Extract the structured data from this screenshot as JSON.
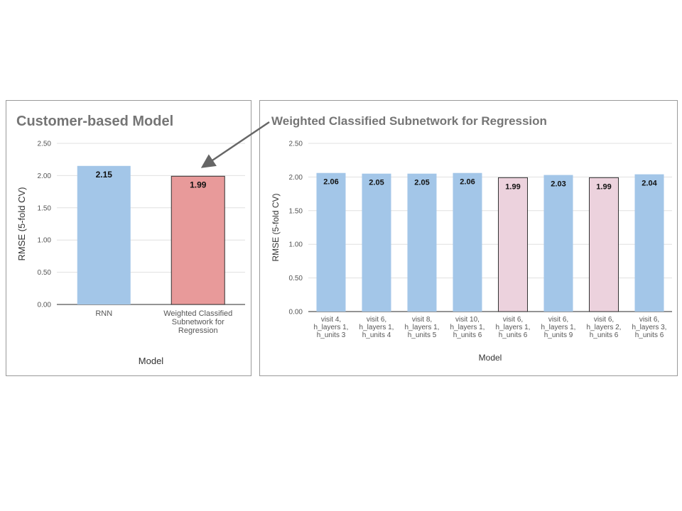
{
  "colors": {
    "bar_blue": "#a3c6e8",
    "bar_red": "#e89a9a",
    "bar_pink": "#ecd2dd",
    "grid": "#e0e0e0",
    "axis": "#555555",
    "arrow": "#666666"
  },
  "chart_data": [
    {
      "type": "bar",
      "title": "Customer-based Model",
      "xlabel": "Model",
      "ylabel": "RMSE (5-fold CV)",
      "ylim": [
        0,
        2.5
      ],
      "yticks": [
        "0.00",
        "0.50",
        "1.00",
        "1.50",
        "2.00",
        "2.50"
      ],
      "grid": true,
      "categories": [
        [
          "RNN"
        ],
        [
          "Weighted Classified",
          "Subnetwork for",
          "Regression"
        ]
      ],
      "values": [
        2.15,
        1.99
      ],
      "value_labels": [
        "2.15",
        "1.99"
      ],
      "bar_colors": [
        "#a3c6e8",
        "#e89a9a"
      ],
      "bar_outlined": [
        false,
        true
      ]
    },
    {
      "type": "bar",
      "title": "Weighted Classified Subnetwork for Regression",
      "xlabel": "Model",
      "ylabel": "RMSE (5-fold CV)",
      "ylim": [
        0,
        2.5
      ],
      "yticks": [
        "0.00",
        "0.50",
        "1.00",
        "1.50",
        "2.00",
        "2.50"
      ],
      "grid": true,
      "categories": [
        [
          "visit 4,",
          "h_layers 1,",
          "h_units 3"
        ],
        [
          "visit 6,",
          "h_layers 1,",
          "h_units 4"
        ],
        [
          "visit 8,",
          "h_layers 1,",
          "h_units 5"
        ],
        [
          "visit 10,",
          "h_layers 1,",
          "h_units 6"
        ],
        [
          "visit 6,",
          "h_layers 1,",
          "h_units 6"
        ],
        [
          "visit 6,",
          "h_layers 1,",
          "h_units 9"
        ],
        [
          "visit 6,",
          "h_layers 2,",
          "h_units 6"
        ],
        [
          "visit 6,",
          "h_layers 3,",
          "h_units 6"
        ]
      ],
      "values": [
        2.06,
        2.05,
        2.05,
        2.06,
        1.99,
        2.03,
        1.99,
        2.04
      ],
      "value_labels": [
        "2.06",
        "2.05",
        "2.05",
        "2.06",
        "1.99",
        "2.03",
        "1.99",
        "2.04"
      ],
      "bar_colors": [
        "#a3c6e8",
        "#a3c6e8",
        "#a3c6e8",
        "#a3c6e8",
        "#ecd2dd",
        "#a3c6e8",
        "#ecd2dd",
        "#a3c6e8"
      ],
      "bar_outlined": [
        false,
        false,
        false,
        false,
        true,
        false,
        true,
        false
      ]
    }
  ]
}
